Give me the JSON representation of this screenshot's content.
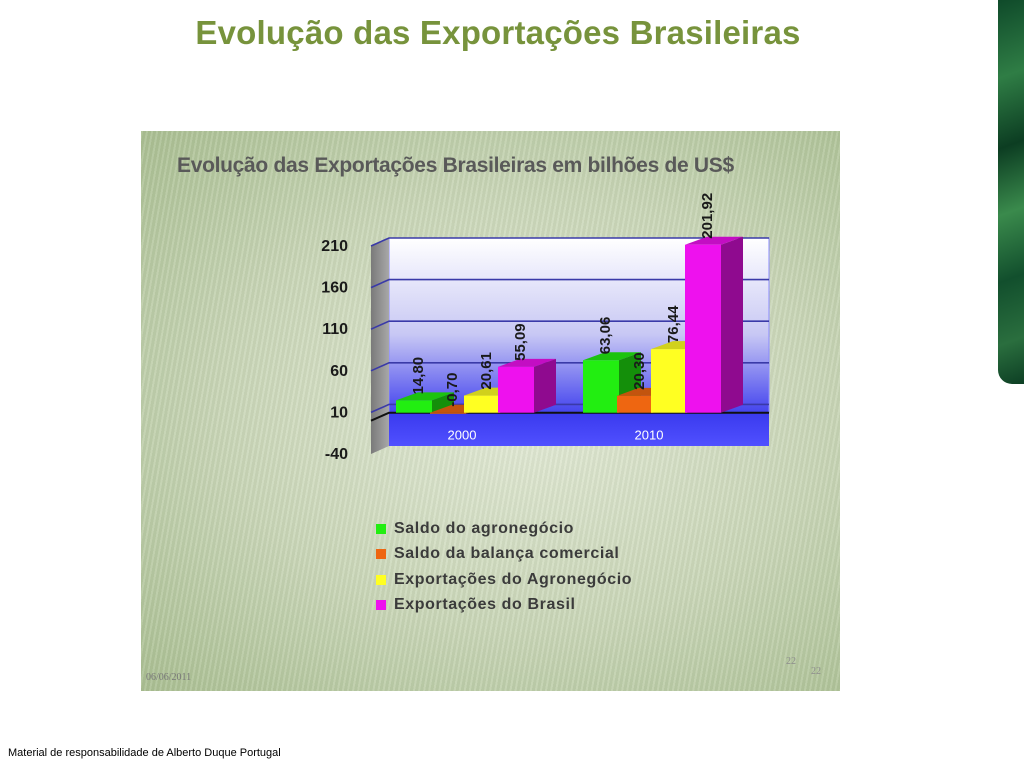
{
  "slide": {
    "title": "Evolução das Exportações Brasileiras",
    "footer": "Material de responsabilidade de Alberto Duque Portugal"
  },
  "panel": {
    "date": "06/06/2011",
    "page_number_a": "22",
    "page_number_b": "22"
  },
  "colors": {
    "title": "#77933c",
    "green": "#22ee11",
    "orange": "#ee6611",
    "yellow": "#ffff22",
    "magenta": "#ee11ee"
  },
  "chart_data": {
    "type": "bar",
    "title": "Evolução das Exportações Brasileiras em bilhões de US$",
    "categories": [
      "2000",
      "2010"
    ],
    "series": [
      {
        "name": "Saldo do agronegócio",
        "values": [
          14.8,
          63.06
        ],
        "labels": [
          "14,80",
          "63,06"
        ],
        "color": "#22ee11"
      },
      {
        "name": "Saldo da balança comercial",
        "values": [
          -0.7,
          20.3
        ],
        "labels": [
          "-0,70",
          "20,30"
        ],
        "color": "#ee6611"
      },
      {
        "name": "Exportações do Agronegócio",
        "values": [
          20.61,
          76.44
        ],
        "labels": [
          "20,61",
          "76,44"
        ],
        "color": "#ffff22"
      },
      {
        "name": "Exportações do Brasil",
        "values": [
          55.09,
          201.92
        ],
        "labels": [
          "55,09",
          "201,92"
        ],
        "color": "#ee11ee"
      }
    ],
    "y_ticks": [
      "210",
      "160",
      "110",
      "60",
      "10",
      "-40"
    ],
    "ylim": [
      -40,
      210
    ],
    "legend_position": "bottom",
    "grid": true
  }
}
